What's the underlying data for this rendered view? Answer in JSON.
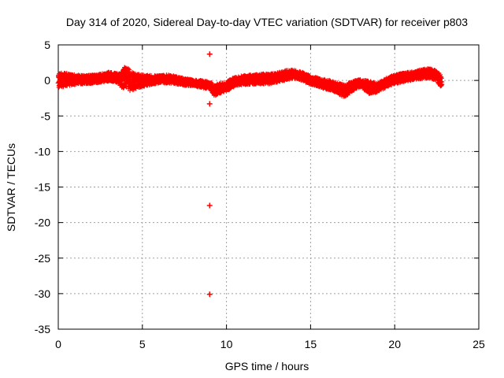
{
  "chart_data": {
    "type": "scatter",
    "title": "Day 314 of 2020, Sidereal Day-to-day VTEC variation (SDTVAR) for receiver p803",
    "xlabel": "GPS time / hours",
    "ylabel": "SDTVAR / TECUs",
    "xlim": [
      0,
      25
    ],
    "ylim": [
      -35,
      5
    ],
    "xticks": [
      0,
      5,
      10,
      15,
      20,
      25
    ],
    "yticks": [
      5,
      0,
      -5,
      -10,
      -15,
      -20,
      -25,
      -30,
      -35
    ],
    "grid": true,
    "marker": "+",
    "marker_color": "#ff0000",
    "series": [
      {
        "name": "SDTVAR",
        "band": {
          "x": [
            0.0,
            0.5,
            1.0,
            1.5,
            2.0,
            2.5,
            3.0,
            3.5,
            3.8,
            4.0,
            4.3,
            4.6,
            5.0,
            5.5,
            6.0,
            6.5,
            7.0,
            7.5,
            8.0,
            8.5,
            9.0,
            9.3,
            9.6,
            10.0,
            10.5,
            11.0,
            11.5,
            12.0,
            12.5,
            13.0,
            13.5,
            14.0,
            14.5,
            15.0,
            15.5,
            16.0,
            16.5,
            17.0,
            17.5,
            18.0,
            18.5,
            19.0,
            19.5,
            20.0,
            20.5,
            21.0,
            21.5,
            22.0,
            22.5,
            22.8
          ],
          "lo": [
            -1.0,
            -0.8,
            -0.6,
            -0.5,
            -0.4,
            -0.3,
            -0.1,
            -0.3,
            -1.2,
            -0.8,
            -1.5,
            -1.2,
            -0.9,
            -0.6,
            -0.4,
            -0.4,
            -0.5,
            -0.7,
            -0.8,
            -1.0,
            -1.2,
            -2.2,
            -1.8,
            -1.5,
            -0.8,
            -0.6,
            -0.6,
            -0.6,
            -0.5,
            -0.3,
            0.0,
            0.3,
            0.0,
            -0.6,
            -0.9,
            -1.3,
            -1.7,
            -2.4,
            -1.5,
            -0.9,
            -1.9,
            -1.7,
            -0.9,
            -0.5,
            -0.2,
            0.0,
            0.2,
            0.3,
            0.0,
            -1.2
          ],
          "hi": [
            1.1,
            1.0,
            0.8,
            0.7,
            0.8,
            0.9,
            1.2,
            1.0,
            1.3,
            2.2,
            1.2,
            1.0,
            0.8,
            0.7,
            0.7,
            0.8,
            0.6,
            0.3,
            0.1,
            0.0,
            -0.2,
            -0.6,
            -0.4,
            -0.2,
            0.5,
            0.7,
            0.8,
            0.9,
            1.0,
            1.1,
            1.4,
            1.5,
            1.2,
            0.6,
            0.3,
            0.1,
            -0.3,
            -0.6,
            -0.1,
            0.2,
            -0.1,
            -0.4,
            0.3,
            0.8,
            1.1,
            1.2,
            1.5,
            1.7,
            1.4,
            0.7
          ]
        },
        "outliers": [
          {
            "x": 9.0,
            "y": 3.7
          },
          {
            "x": 9.0,
            "y": -3.3
          },
          {
            "x": 9.0,
            "y": -17.6
          },
          {
            "x": 9.0,
            "y": -30.1
          }
        ]
      }
    ]
  }
}
